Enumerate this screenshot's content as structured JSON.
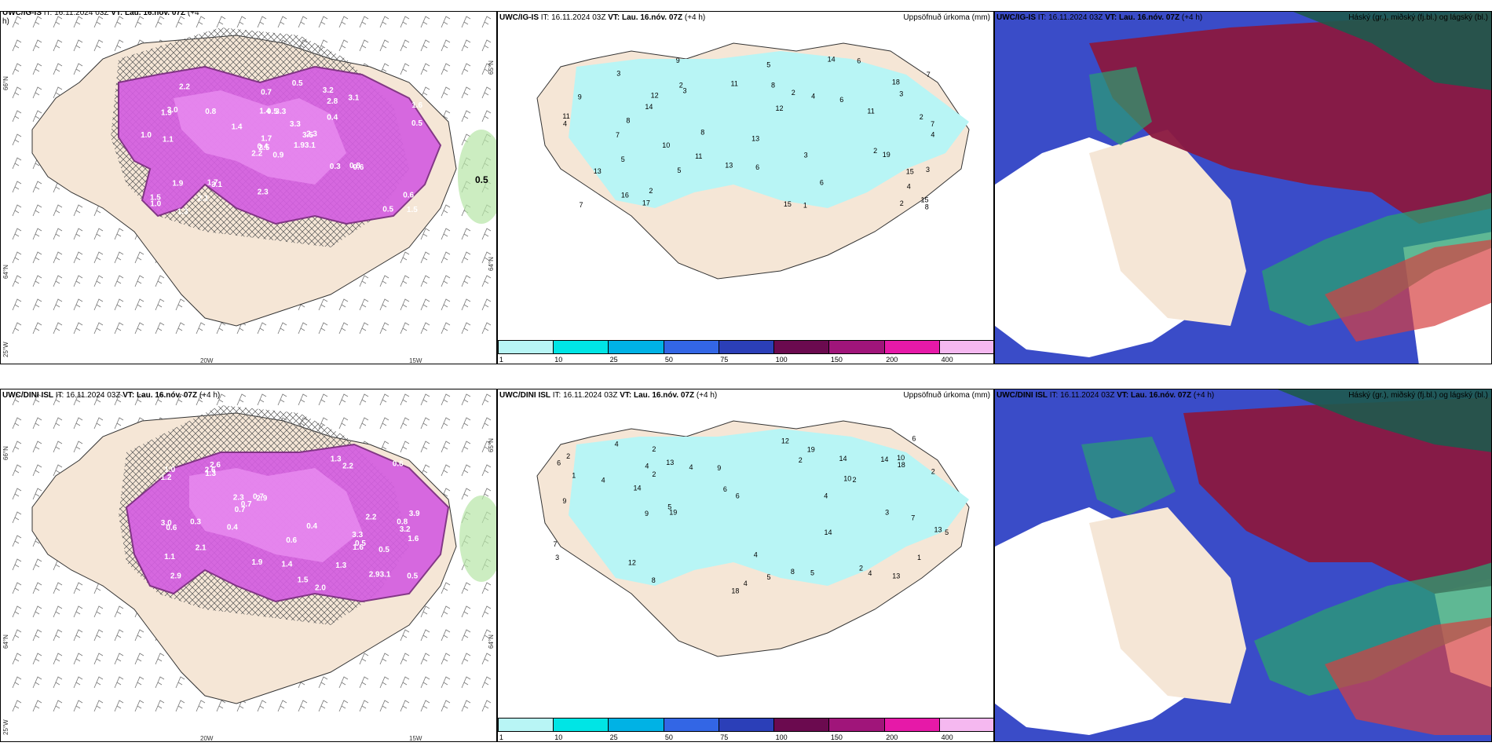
{
  "rows": [
    {
      "model": "UWC/IG-IS",
      "it_label": "IT:",
      "it_value": "16.11.2024 03Z",
      "vt_label": "VT:",
      "vt_value": "Lau. 16.nóv. 07Z",
      "lead": "(+4 h)",
      "left_title_wrapped": "UWC/IG-IS IT: 16.11.2024 03Z VT: Lau. 16.nóv. 07Z (+4",
      "left_title_tail": "h)",
      "precip_title": "Uppsöfnuð úrkoma (mm)",
      "cloud_title": "Háský (gr.), miðský (fj.bl.) og lágský (bl.)",
      "wind_labels": [
        "0.9",
        "1.9",
        "2.5",
        "1.5",
        "3.5",
        "3.1",
        "3.2",
        "3.3",
        "2.8",
        "1.93.1",
        "2.2",
        "1.5",
        "1.1",
        "1.6",
        "2.2",
        "0.4",
        "1.3",
        "1.4",
        "3.3",
        "1.9",
        "1.4",
        "1.0",
        "2.1",
        "0.5",
        "2.3",
        "0.6",
        "3.0",
        "0.7",
        "1.0",
        "0.3",
        "0.5",
        "0.4",
        "2.3",
        "1.7",
        "0.8",
        "3.1",
        "1.7",
        "0.5",
        "0.6",
        "0.8",
        "0.5"
      ],
      "offshore_label": "0.5",
      "precip_labels": [
        "3",
        "2",
        "4",
        "7",
        "8",
        "3",
        "11",
        "14",
        "15",
        "18",
        "14",
        "19",
        "11",
        "5",
        "13",
        "13",
        "10",
        "11",
        "9",
        "11",
        "15",
        "8",
        "16",
        "5",
        "12",
        "6",
        "7",
        "6",
        "15",
        "7",
        "17",
        "8",
        "7",
        "5",
        "8",
        "4",
        "4",
        "3",
        "3",
        "2",
        "1",
        "9",
        "13",
        "6",
        "4",
        "3",
        "2",
        "6",
        "2",
        "2",
        "2",
        "12"
      ]
    },
    {
      "model": "UWC/DINI ISL",
      "it_label": "IT:",
      "it_value": "16.11.2024 03Z",
      "vt_label": "VT:",
      "vt_value": "Lau. 16.nóv. 07Z",
      "lead": "(+4 h)",
      "precip_title": "Uppsöfnuð úrkoma (mm)",
      "cloud_title": "Háský (gr.), miðský (fj.bl.) og lágský (bl.)",
      "wind_labels": [
        "3.3",
        "3.2",
        "2.9",
        "2.6",
        "2.9",
        "2.93.1",
        "1.1",
        "2.2",
        "2.3",
        "2.0",
        "1.2",
        "3.0",
        "1.0",
        "0.5",
        "1.9",
        "3.9",
        "0.6",
        "0.4",
        "0.7",
        "2.1",
        "0.4",
        "0.6",
        "0.7",
        "1.6",
        "1.3",
        "2.6",
        "0.5",
        "0.6",
        "1.3",
        "2.2",
        "1.5",
        "1.3",
        "0.7",
        "0.4",
        "0.8",
        "0.5",
        "1.6",
        "0.3",
        "1.4"
      ],
      "precip_labels": [
        "1",
        "2",
        "4",
        "4",
        "14",
        "18",
        "14",
        "19",
        "10",
        "5",
        "13",
        "13",
        "10",
        "12",
        "9",
        "8",
        "5",
        "9",
        "13",
        "8",
        "4",
        "7",
        "6",
        "4",
        "14",
        "14",
        "18",
        "19",
        "4",
        "9",
        "7",
        "5",
        "6",
        "4",
        "2",
        "2",
        "4",
        "2",
        "12",
        "3",
        "2",
        "4",
        "6",
        "2",
        "5",
        "2",
        "6",
        "3",
        "1"
      ]
    }
  ],
  "colorbar": {
    "colors": [
      "#b8f5f5",
      "#00e5e5",
      "#00b2e5",
      "#3366e5",
      "#2b3fb8",
      "#6b0a4f",
      "#a0157a",
      "#e619a8",
      "#f5b8f0"
    ],
    "ticks": [
      "1",
      "10",
      "25",
      "50",
      "75",
      "100",
      "150",
      "200",
      "400"
    ]
  },
  "axis_labels": {
    "lat_66": "66°N",
    "lat_64": "64°N",
    "lon_25": "25°W",
    "lon_20": "20W",
    "lon_15": "15W",
    "lat_65r": "65°N",
    "lat_64r": "64°N"
  },
  "colors": {
    "land": "#f5e6d6",
    "precip_light": "#b8f5f5",
    "snow_purple": "#d45ee0",
    "snow_dark": "#7a2a80",
    "high_cloud": "#8a1840",
    "mid_cloud": "#2aa070",
    "low_cloud": "#3a4cc8"
  }
}
